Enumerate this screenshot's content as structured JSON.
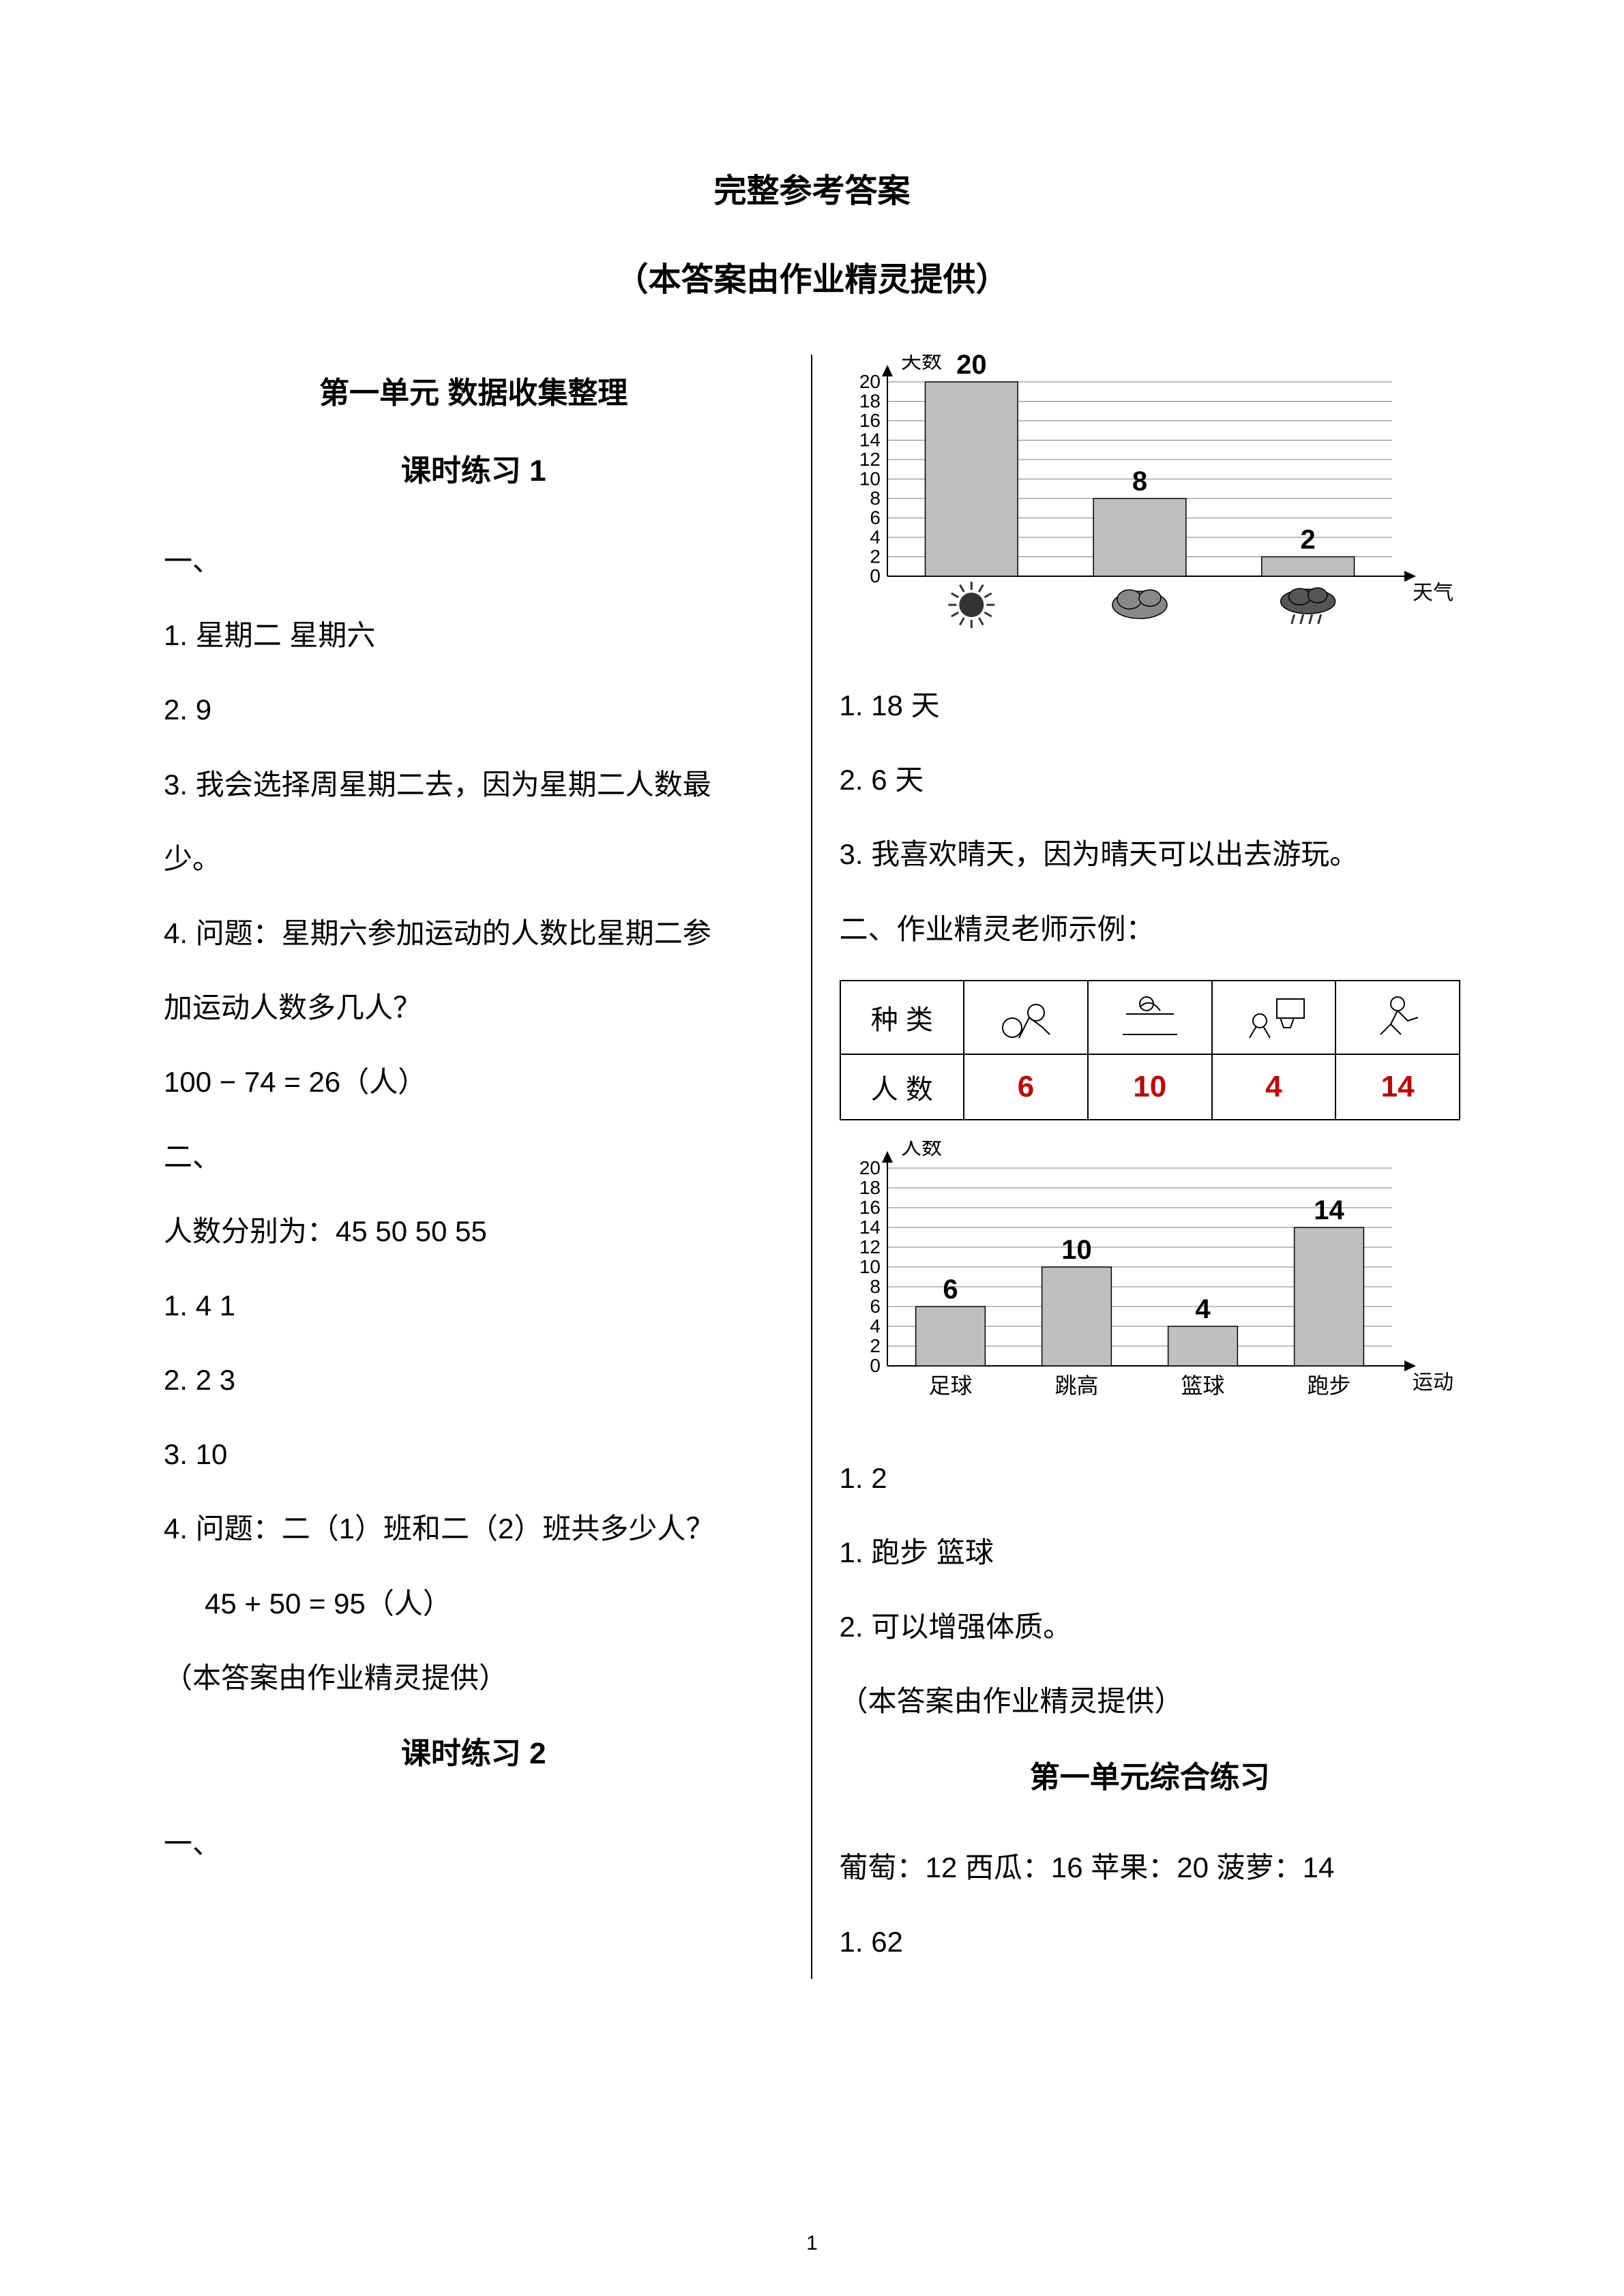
{
  "titles": {
    "main": "完整参考答案",
    "sub": "（本答案由作业精灵提供）"
  },
  "left": {
    "unit_title": "第一单元  数据收集整理",
    "lesson1_title": "课时练习 1",
    "sec1_marker": "一、",
    "l1": "1.  星期二    星期六",
    "l2": "2.  9",
    "l3a": "3.  我会选择周星期二去，因为星期二人数最",
    "l3b": "少。",
    "l4a": "4. 问题：星期六参加运动的人数比星期二参",
    "l4b": "加运动人数多几人？",
    "l4c": "100 − 74 = 26（人）",
    "sec2_marker": "二、",
    "l5": "人数分别为：45 50 50 55",
    "l6": "1.  4   1",
    "l7": "2.  2   3",
    "l8": "3.  10",
    "l9": "4. 问题：二（1）班和二（2）班共多少人？",
    "l10": "45 + 50 = 95（人）",
    "l11": "（本答案由作业精灵提供）",
    "lesson2_title": "课时练习 2",
    "sec1b_marker": "一、"
  },
  "right": {
    "chart1": {
      "type": "bar",
      "y_axis_title": "天数",
      "x_axis_title": "天气",
      "categories": [
        "sunny",
        "cloudy",
        "rainy"
      ],
      "values": [
        20,
        8,
        2
      ],
      "ylim": [
        0,
        20
      ],
      "yticks": [
        0,
        2,
        4,
        6,
        8,
        10,
        12,
        14,
        16,
        18,
        20
      ],
      "bar_color": "#bfbfbf",
      "grid_color": "#808080",
      "background_color": "#ffffff",
      "bar_width_ratio": 0.55,
      "label_fontsize": 40,
      "tick_fontsize": 28
    },
    "r1": "1.  18 天",
    "r2": "2.  6 天",
    "r3": "3.  我喜欢晴天，因为晴天可以出去游玩。",
    "r4": "二、作业精灵老师示例：",
    "sports_table": {
      "header_label": "种  类",
      "row_label": "人  数",
      "icons": [
        "football",
        "highjump",
        "basketball",
        "running"
      ],
      "values": [
        "6",
        "10",
        "4",
        "14"
      ],
      "value_color": "#c00000"
    },
    "chart2": {
      "type": "bar",
      "y_axis_title": "人数",
      "x_axis_title": "运动项目",
      "categories": [
        "足球",
        "跳高",
        "篮球",
        "跑步"
      ],
      "values": [
        6,
        10,
        4,
        14
      ],
      "ylim": [
        0,
        20
      ],
      "yticks": [
        0,
        2,
        4,
        6,
        8,
        10,
        12,
        14,
        16,
        18,
        20
      ],
      "bar_color": "#bfbfbf",
      "grid_color": "#808080",
      "background_color": "#ffffff",
      "bar_width_ratio": 0.55,
      "label_fontsize": 40,
      "tick_fontsize": 28
    },
    "r5": "1.  2",
    "r6": "1.  跑步    篮球",
    "r7": "2.  可以增强体质。",
    "r8": "（本答案由作业精灵提供）",
    "unit_review_title": "第一单元综合练习",
    "r9": "葡萄：12   西瓜：16   苹果：20   菠萝：14",
    "r10": "1.  62"
  },
  "page_number": "1"
}
